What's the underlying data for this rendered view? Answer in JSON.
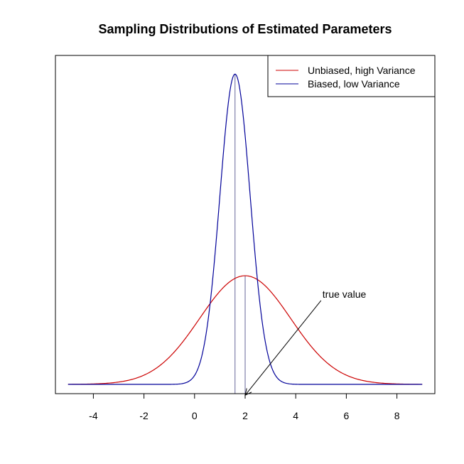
{
  "chart_data": {
    "type": "line",
    "title": "Sampling Distributions of Estimated Parameters",
    "xlabel": "",
    "ylabel": "",
    "xlim": [
      -5.5,
      9.5
    ],
    "ylim": [
      -0.03,
      1.06
    ],
    "x_ticks": [
      -4,
      -2,
      0,
      2,
      4,
      6,
      8
    ],
    "x_tick_labels": [
      "-4",
      "-2",
      "0",
      "2",
      "4",
      "6",
      "8"
    ],
    "grid": false,
    "legend_position": "top-right",
    "x_range": [
      -5,
      9
    ],
    "series": [
      {
        "name": "Unbiased, high Variance",
        "color": "#cc0000",
        "mean": 2.0,
        "sd": 1.8,
        "peak": 0.35
      },
      {
        "name": "Biased, low Variance",
        "color": "#000099",
        "mean": 1.6,
        "sd": 0.6,
        "peak": 1.0
      }
    ],
    "vlines": [
      {
        "x": 1.6,
        "y0": -0.03,
        "y1": 1.0,
        "color": "#666699"
      },
      {
        "x": 2.0,
        "y0": -0.03,
        "y1": 0.35,
        "color": "#666699"
      }
    ],
    "annotation": {
      "text": "true value",
      "point": [
        2.0,
        -0.035
      ],
      "label_anchor": [
        5.0,
        0.27
      ]
    }
  }
}
